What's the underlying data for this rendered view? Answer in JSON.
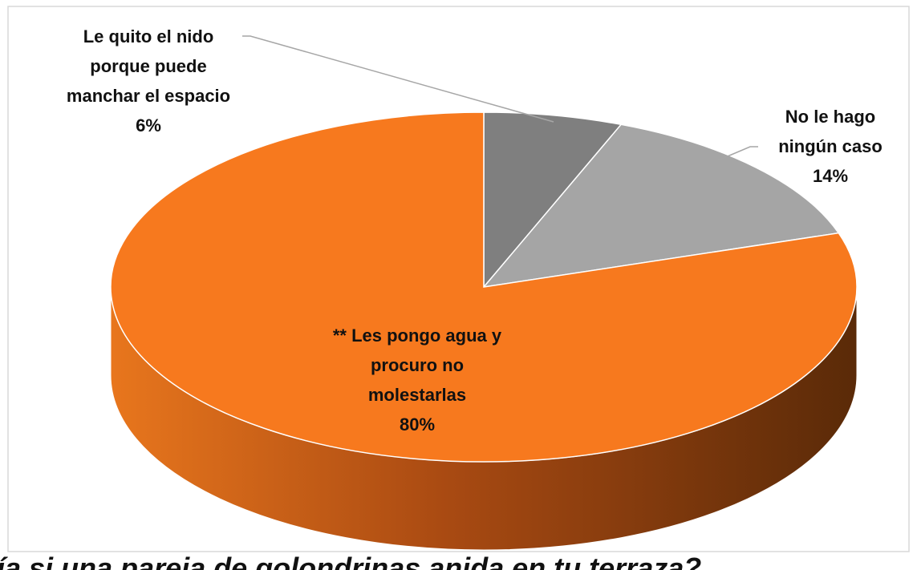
{
  "chart_data": {
    "type": "pie",
    "title": "ía si una pareja de golondrinas anida en tu terraza?",
    "categories": [
      "Le quito el nido porque puede manchar el espacio",
      "No le hago ningún caso",
      "** Les pongo agua y procuro no molestarlas"
    ],
    "values": [
      6,
      14,
      80
    ],
    "value_labels": [
      "6%",
      "14%",
      "80%"
    ],
    "colors": [
      "#7f7f7f",
      "#a5a5a5",
      "#f7791e"
    ]
  }
}
